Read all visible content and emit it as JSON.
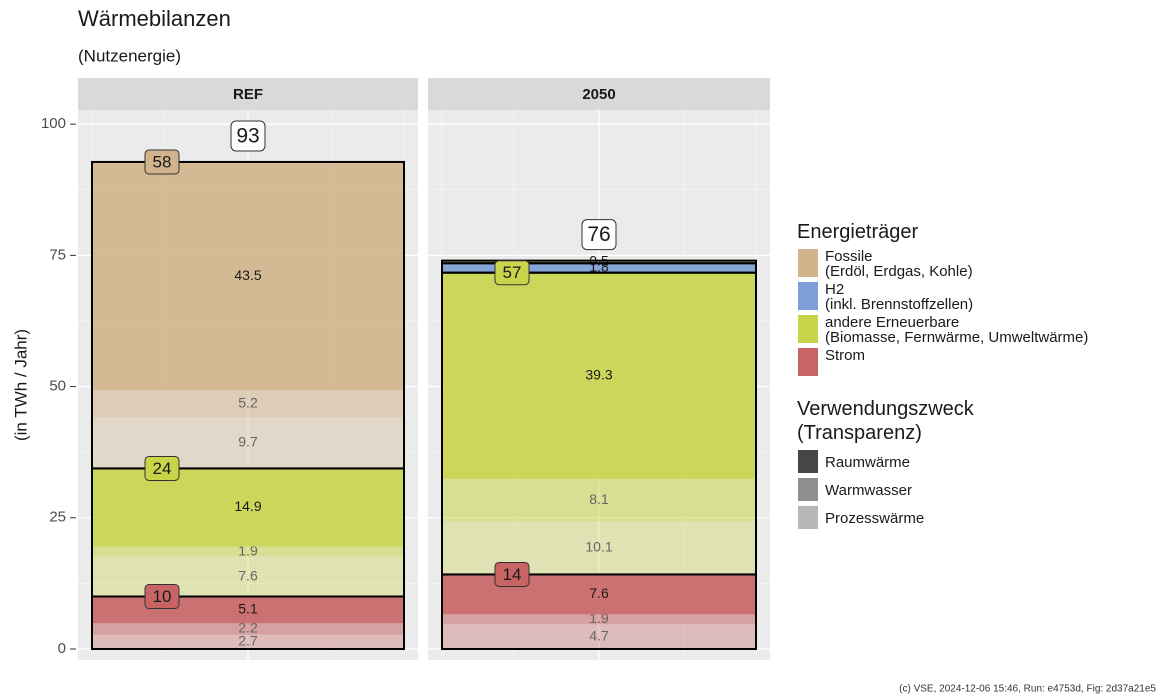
{
  "chart_data": {
    "type": "stacked-bar",
    "title": "Wärmebilanzen",
    "subtitle": "(Nutzenergie)",
    "y_label": "(in TWh / Jahr)",
    "panels": [
      "REF",
      "2050"
    ],
    "totals": [
      93,
      76
    ],
    "ylim": [
      -2.1,
      102.7
    ],
    "yticks": [
      0,
      25,
      50,
      75,
      100
    ],
    "grid": true,
    "carrier_legend_title": "Energieträger",
    "purpose_legend_title": "Verwendungszweck\n(Transparenz)",
    "purposes": [
      {
        "name": "Raumwärme",
        "opacity": 0.9
      },
      {
        "name": "Warmwasser",
        "opacity": 0.55
      },
      {
        "name": "Prozesswärme",
        "opacity": 0.35
      }
    ],
    "series": [
      {
        "name": "Fossile\n(Erdöl, Erdgas, Kohle)",
        "color": "#d2b48c",
        "values": [
          [
            43.5,
            5.2,
            9.7
          ],
          [
            0.5,
            null,
            null
          ]
        ],
        "group_labels": [
          58,
          null
        ]
      },
      {
        "name": "H2\n(inkl. Brennstoffzellen)",
        "color": "#7b9fd6",
        "values": [
          [
            null,
            null,
            null
          ],
          [
            1.8,
            null,
            null
          ]
        ],
        "group_labels": [
          null,
          null
        ]
      },
      {
        "name": "andere Erneuerbare\n(Biomasse, Fernwärme, Umweltwärme)",
        "color": "#c8d44a",
        "values": [
          [
            14.9,
            1.9,
            7.6
          ],
          [
            39.3,
            8.1,
            10.1
          ]
        ],
        "group_labels": [
          24,
          57
        ]
      },
      {
        "name": "Strom",
        "color": "#c96464",
        "values": [
          [
            5.1,
            2.2,
            2.7
          ],
          [
            7.6,
            1.9,
            4.7
          ]
        ],
        "group_labels": [
          10,
          14
        ]
      }
    ],
    "caption": "(c) VSE, 2024-12-06 15:46, Run: e4753d, Fig: 2d37a21e5"
  }
}
